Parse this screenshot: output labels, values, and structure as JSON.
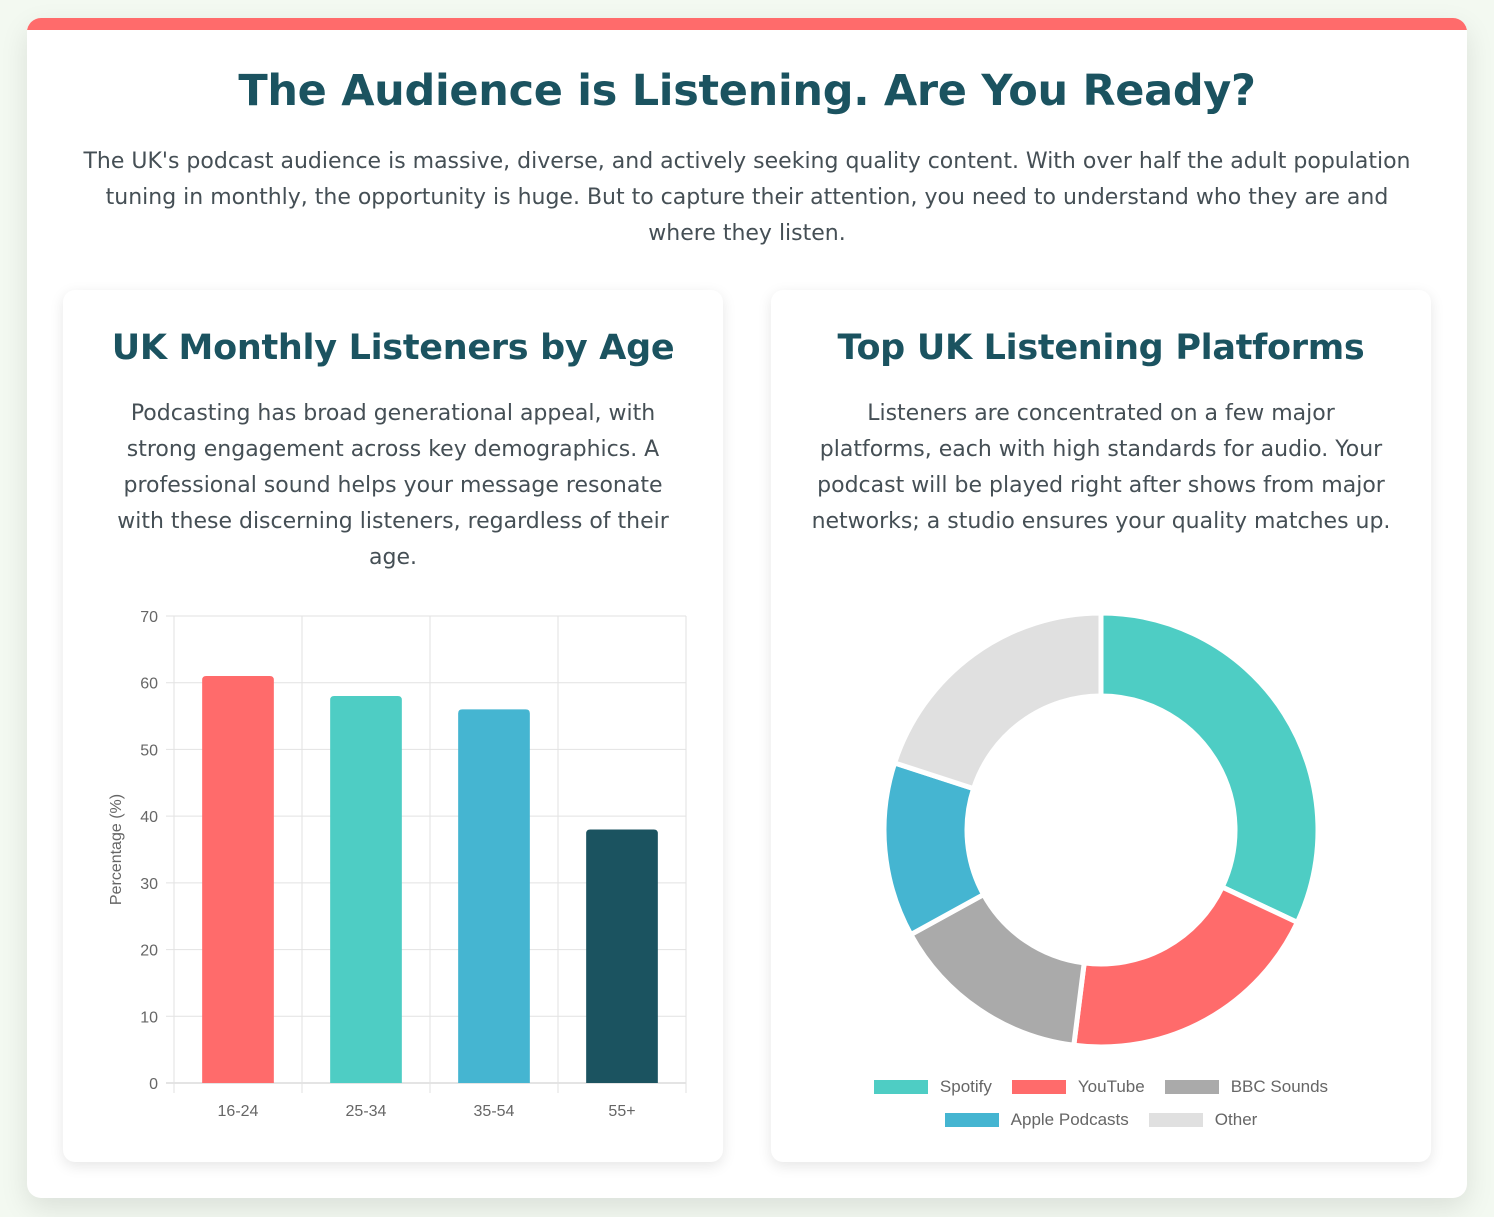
{
  "header": {
    "title": "The Audience is Listening. Are You Ready?",
    "intro": "The UK's podcast audience is massive, diverse, and actively seeking quality content. With over half the adult population tuning in monthly, the opportunity is huge. But to capture their attention, you need to understand who they are and where they listen."
  },
  "age_card": {
    "title": "UK Monthly Listeners by Age",
    "description": "Podcasting has broad generational appeal, with strong engagement across key demographics. A professional sound helps your message resonate with these discerning listeners, regardless of their age."
  },
  "platform_card": {
    "title": "Top UK Listening Platforms",
    "description": "Listeners are concentrated on a few major platforms, each with high standards for audio. Your podcast will be played right after shows from major networks; a studio ensures your quality matches up."
  },
  "chart_data": [
    {
      "type": "bar",
      "categories": [
        "16-24",
        "25-34",
        "35-54",
        "55+"
      ],
      "values": [
        61,
        58,
        56,
        38
      ],
      "colors": [
        "#ff6b6b",
        "#4ecdc4",
        "#45b5d1",
        "#1b5360"
      ],
      "ylabel": "Percentage (%)",
      "ylim": [
        0,
        70
      ],
      "yticks": [
        0,
        10,
        20,
        30,
        40,
        50,
        60,
        70
      ],
      "grid": true
    },
    {
      "type": "pie",
      "labels": [
        "Spotify",
        "YouTube",
        "BBC Sounds",
        "Apple Podcasts",
        "Other"
      ],
      "values": [
        32,
        20,
        15,
        13,
        20
      ],
      "colors": [
        "#4ecdc4",
        "#ff6b6b",
        "#aaaaaa",
        "#45b5d1",
        "#e0e0e0"
      ],
      "donut": true,
      "legend": "bottom"
    }
  ]
}
